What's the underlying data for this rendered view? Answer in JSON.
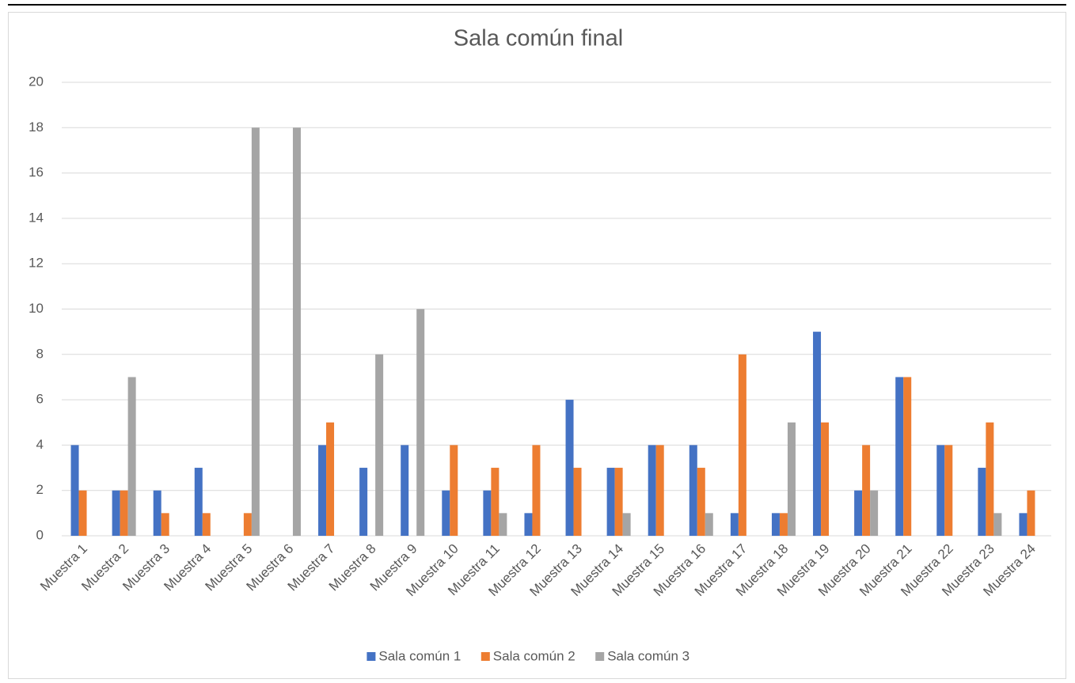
{
  "chart_data": {
    "type": "bar",
    "title": "Sala común final",
    "categories": [
      "Muestra 1",
      "Muestra 2",
      "Muestra 3",
      "Muestra 4",
      "Muestra 5",
      "Muestra 6",
      "Muestra 7",
      "Muestra 8",
      "Muestra 9",
      "Muestra 10",
      "Muestra 11",
      "Muestra 12",
      "Muestra 13",
      "Muestra 14",
      "Muestra 15",
      "Muestra 16",
      "Muestra 17",
      "Muestra 18",
      "Muestra 19",
      "Muestra 20",
      "Muestra 21",
      "Muestra 22",
      "Muestra 23",
      "Muestra 24"
    ],
    "series": [
      {
        "name": "Sala común 1",
        "color": "#4472c4",
        "values": [
          4,
          2,
          2,
          3,
          0,
          0,
          4,
          3,
          4,
          2,
          2,
          1,
          6,
          3,
          4,
          4,
          1,
          1,
          9,
          2,
          7,
          4,
          3,
          1
        ]
      },
      {
        "name": "Sala común 2",
        "color": "#ed7d31",
        "values": [
          2,
          2,
          1,
          1,
          1,
          0,
          5,
          0,
          0,
          4,
          3,
          4,
          3,
          3,
          4,
          3,
          8,
          1,
          5,
          4,
          7,
          4,
          5,
          2
        ]
      },
      {
        "name": "Sala común 3",
        "color": "#a5a5a5",
        "values": [
          0,
          7,
          0,
          0,
          18,
          18,
          0,
          8,
          10,
          0,
          1,
          0,
          0,
          1,
          0,
          1,
          0,
          5,
          0,
          2,
          0,
          0,
          1,
          0
        ]
      }
    ],
    "ylim": [
      0,
      20
    ],
    "yticks": [
      0,
      2,
      4,
      6,
      8,
      10,
      12,
      14,
      16,
      18,
      20
    ],
    "grid": true,
    "legend": "bottom"
  }
}
